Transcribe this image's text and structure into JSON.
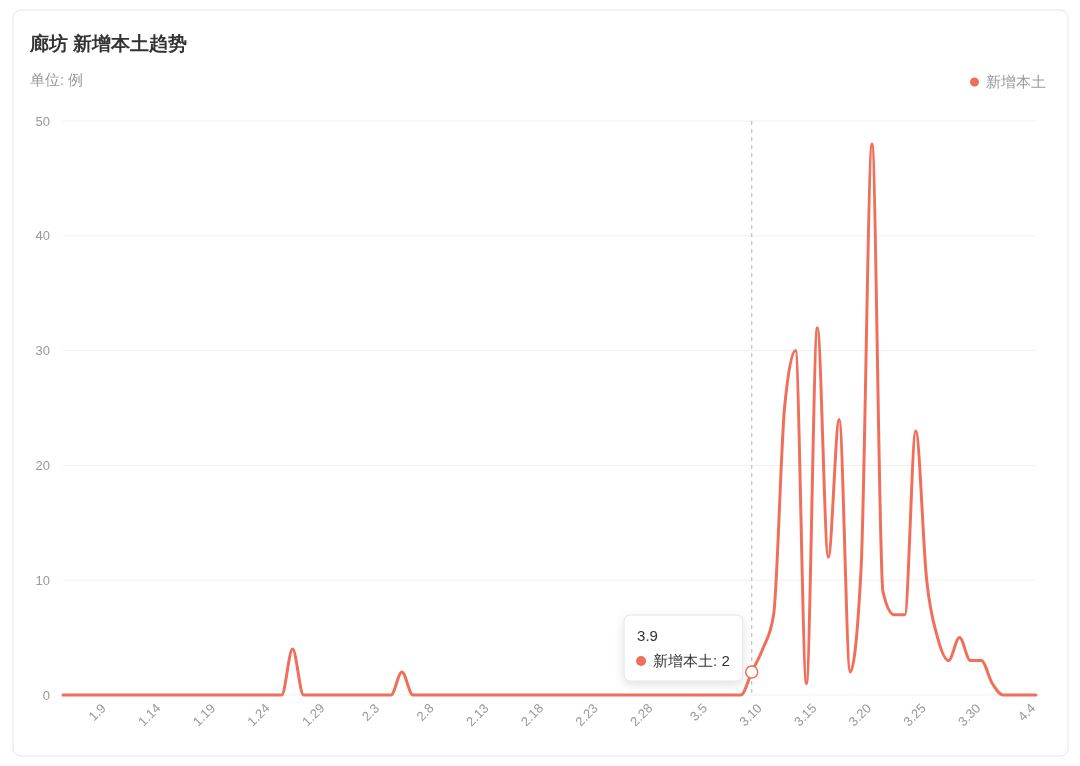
{
  "chart_data": {
    "type": "line",
    "title": "廊坊 新增本土趋势",
    "subtitle": "单位: 例",
    "x": [
      "--01-05",
      "--01-06",
      "--01-07",
      "--01-08",
      "--01-09",
      "--01-10",
      "--01-11",
      "--01-12",
      "--01-13",
      "--01-14",
      "--01-15",
      "--01-16",
      "--01-17",
      "--01-18",
      "--01-19",
      "--01-20",
      "--01-21",
      "--01-22",
      "--01-23",
      "--01-24",
      "--01-25",
      "--01-26",
      "--01-27",
      "--01-28",
      "--01-29",
      "--01-30",
      "--01-31",
      "--02-01",
      "--02-02",
      "--02-03",
      "--02-04",
      "--02-05",
      "--02-06",
      "--02-07",
      "--02-08",
      "--02-09",
      "--02-10",
      "--02-11",
      "--02-12",
      "--02-13",
      "--02-14",
      "--02-15",
      "--02-16",
      "--02-17",
      "--02-18",
      "--02-19",
      "--02-20",
      "--02-21",
      "--02-22",
      "--02-23",
      "--02-24",
      "--02-25",
      "--02-26",
      "--02-27",
      "--02-28",
      "--03-01",
      "--03-02",
      "--03-03",
      "--03-04",
      "--03-05",
      "--03-06",
      "--03-07",
      "--03-08",
      "--03-09",
      "--03-10",
      "--03-11",
      "--03-12",
      "--03-13",
      "--03-14",
      "--03-15",
      "--03-16",
      "--03-17",
      "--03-18",
      "--03-19",
      "--03-20",
      "--03-21",
      "--03-22",
      "--03-23",
      "--03-24",
      "--03-25",
      "--03-26",
      "--03-27",
      "--03-28",
      "--03-29",
      "--03-30",
      "--03-31",
      "--04-01",
      "--04-02",
      "--04-03",
      "--04-04"
    ],
    "series": [
      {
        "name": "新增本土",
        "color": "#f06f5b",
        "values": [
          0,
          0,
          0,
          0,
          0,
          0,
          0,
          0,
          0,
          0,
          0,
          0,
          0,
          0,
          0,
          0,
          0,
          0,
          0,
          0,
          0,
          4,
          0,
          0,
          0,
          0,
          0,
          0,
          0,
          0,
          0,
          2,
          0,
          0,
          0,
          0,
          0,
          0,
          0,
          0,
          0,
          0,
          0,
          0,
          0,
          0,
          0,
          0,
          0,
          0,
          0,
          0,
          0,
          0,
          0,
          0,
          0,
          0,
          0,
          0,
          0,
          0,
          0,
          2,
          4,
          7,
          25,
          30,
          1,
          32,
          12,
          24,
          2,
          11,
          48,
          9,
          7,
          7,
          23,
          10,
          5,
          3,
          5,
          3,
          3,
          1,
          0,
          0,
          0,
          0
        ]
      }
    ],
    "xlim": [
      "--01-05",
      "--04-04"
    ],
    "xticks": [
      {
        "value": "--01-09",
        "label": "1.9"
      },
      {
        "value": "--01-14",
        "label": "1.14"
      },
      {
        "value": "--01-19",
        "label": "1.19"
      },
      {
        "value": "--01-24",
        "label": "1.24"
      },
      {
        "value": "--01-29",
        "label": "1.29"
      },
      {
        "value": "--02-03",
        "label": "2.3"
      },
      {
        "value": "--02-08",
        "label": "2.8"
      },
      {
        "value": "--02-13",
        "label": "2.13"
      },
      {
        "value": "--02-18",
        "label": "2.18"
      },
      {
        "value": "--02-23",
        "label": "2.23"
      },
      {
        "value": "--02-28",
        "label": "2.28"
      },
      {
        "value": "--03-05",
        "label": "3.5"
      },
      {
        "value": "--03-10",
        "label": "3.10"
      },
      {
        "value": "--03-15",
        "label": "3.15"
      },
      {
        "value": "--03-20",
        "label": "3.20"
      },
      {
        "value": "--03-25",
        "label": "3.25"
      },
      {
        "value": "--03-30",
        "label": "3.30"
      },
      {
        "value": "--04-04",
        "label": "4.4"
      }
    ],
    "ylim": [
      0,
      50
    ],
    "yticks": [
      0,
      10,
      20,
      30,
      40,
      50
    ],
    "grid": "y",
    "legend": "top right",
    "line_style": "solid",
    "ref_lines": [
      {
        "axis": "x",
        "value": "--03-09",
        "color": "#b5b5b5",
        "line_style": "dashed"
      }
    ],
    "annotations": [
      {
        "text": "3.9\n新增本土: 2",
        "x": "--03-09",
        "y": 2
      }
    ]
  }
}
